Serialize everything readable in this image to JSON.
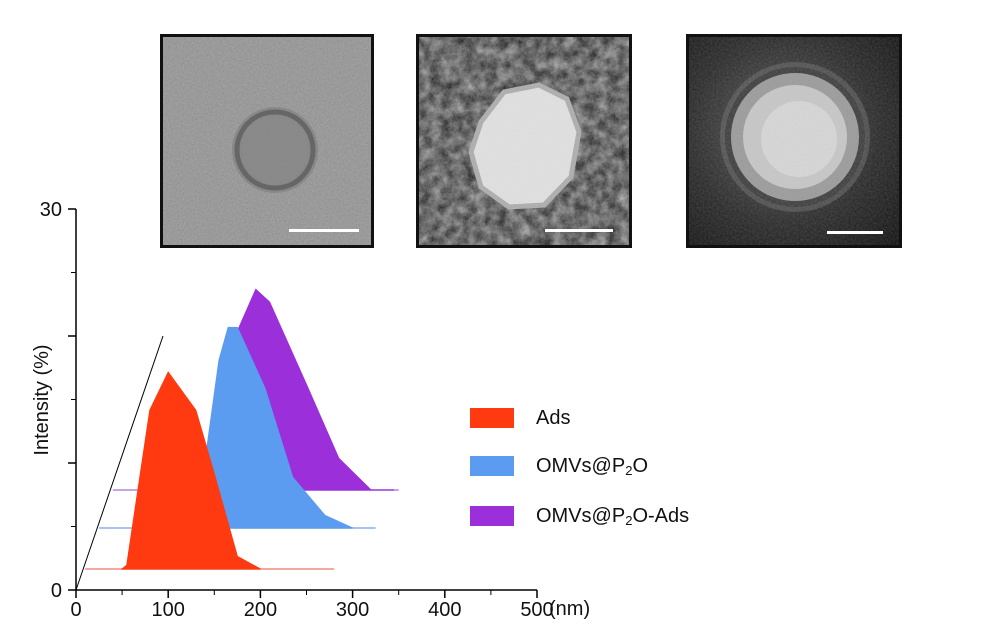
{
  "chart_data": {
    "type": "area",
    "style": "3d-staggered waterfall",
    "ylabel": "Intensity (%)",
    "xunit": "(nm)",
    "xlim": [
      0,
      500
    ],
    "ylim": [
      0,
      30
    ],
    "xticks": [
      0,
      100,
      200,
      300,
      400,
      500
    ],
    "yticks_labeled": [
      0,
      30
    ],
    "series": [
      {
        "name": "Ads",
        "label_main": "Ads",
        "label_sub": "",
        "label_tail": "",
        "color": "#ff3a10",
        "baseline_color": "#f6a8a0",
        "baseline_range": [
          10,
          280
        ],
        "x": [
          50,
          55,
          80,
          100,
          130,
          150,
          175,
          200
        ],
        "y": [
          0,
          0.3,
          12.5,
          15.5,
          12.5,
          7.5,
          1.0,
          0
        ]
      },
      {
        "name": "OMVs@P2O",
        "label_main": "OMVs@P",
        "label_sub": "2",
        "label_tail": "O",
        "color": "#5b9cf0",
        "baseline_color": "#a7c4f0",
        "baseline_range": [
          25,
          325
        ],
        "x": [
          130,
          155,
          165,
          175,
          205,
          235,
          270,
          300
        ],
        "y": [
          0,
          13.2,
          15.8,
          15.8,
          11.0,
          4.0,
          1.0,
          0
        ]
      },
      {
        "name": "OMVs@P2O-Ads",
        "label_main": "OMVs@P",
        "label_sub": "2",
        "label_tail": "O-Ads",
        "color": "#9b2fd9",
        "baseline_color": "#c9a3e8",
        "baseline_range": [
          40,
          350
        ],
        "x": [
          165,
          175,
          195,
          210,
          250,
          285,
          320,
          345
        ],
        "y": [
          0,
          12.5,
          15.8,
          14.8,
          8.3,
          2.5,
          0,
          0
        ]
      }
    ]
  },
  "tem_images": [
    {
      "border_color": "#d61f1f",
      "style": "light",
      "icon": "tem-micrograph-ads"
    },
    {
      "border_color": "#1fa3d6",
      "style": "dark-halo",
      "icon": "tem-micrograph-omvs-p2o"
    },
    {
      "border_color": "#a35ad6",
      "style": "dark-core",
      "icon": "tem-micrograph-omvs-p2o-ads"
    }
  ]
}
